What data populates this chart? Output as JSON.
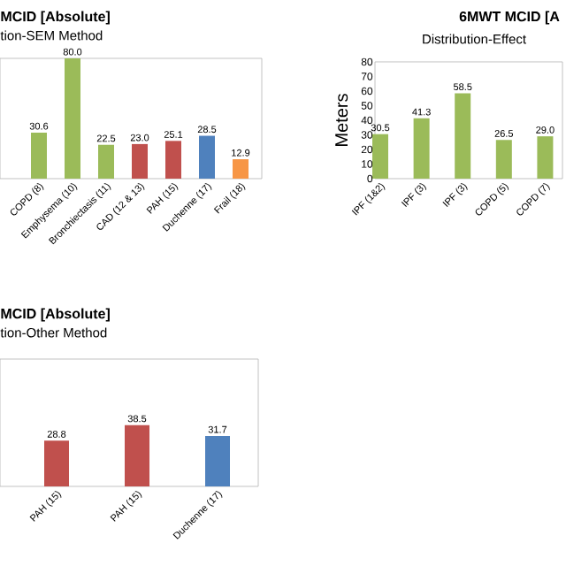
{
  "chart_data": [
    {
      "type": "bar",
      "title": "MCID [Absolute]",
      "subtitle": "tion-SEM Method",
      "categories": [
        "COPD (8)",
        "Emphysema (10)",
        "Bronchiectasis (11)",
        "CAD (12 & 13)",
        "PAH (15)",
        "Duchenne (17)",
        "Frail (18)"
      ],
      "values": [
        30.6,
        80.0,
        22.5,
        23.0,
        25.1,
        28.5,
        12.9
      ],
      "colors": [
        "#9bbb59",
        "#9bbb59",
        "#9bbb59",
        "#c0504d",
        "#c0504d",
        "#4f81bd",
        "#f79646"
      ],
      "value_labels": [
        "30.6",
        "80.0",
        "22.5",
        "23.0",
        "25.1",
        "28.5",
        "12.9"
      ]
    },
    {
      "type": "bar",
      "title": "6MWT MCID [A",
      "subtitle": "Distribution-Effect",
      "ylabel": "Meters",
      "categories": [
        "IPF (1&2)",
        "IPF (3)",
        "IPF (3)",
        "COPD (5)",
        "COPD (7)"
      ],
      "values": [
        30.5,
        41.3,
        58.5,
        26.5,
        29.0
      ],
      "colors": [
        "#9bbb59",
        "#9bbb59",
        "#9bbb59",
        "#9bbb59",
        "#9bbb59"
      ],
      "ylim": [
        0,
        80
      ],
      "yticks": [
        0,
        10,
        20,
        30,
        40,
        50,
        60,
        70,
        80
      ],
      "value_labels": [
        "30.5",
        "41.3",
        "58.5",
        "26.5",
        "29.0"
      ]
    },
    {
      "type": "bar",
      "title": "MCID [Absolute]",
      "subtitle": "tion-Other Method",
      "categories": [
        "PAH (15)",
        "PAH (15)",
        "Duchenne (17)"
      ],
      "values": [
        28.8,
        38.5,
        31.7
      ],
      "colors": [
        "#c0504d",
        "#c0504d",
        "#4f81bd"
      ],
      "value_labels": [
        "28.8",
        "38.5",
        "31.7"
      ]
    }
  ]
}
